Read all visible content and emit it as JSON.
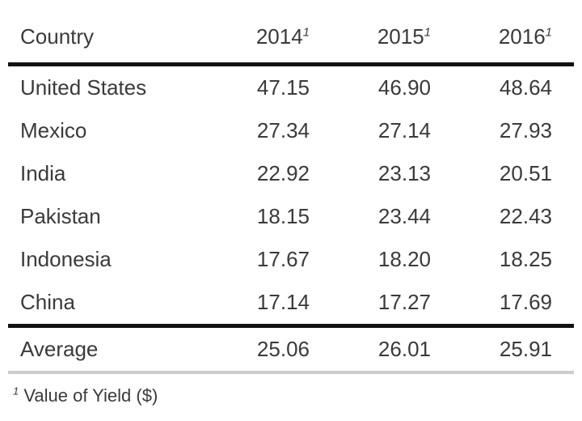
{
  "colors": {
    "background": "#ffffff",
    "text": "#3a3a3a",
    "heavy_rule": "#121212",
    "light_rule": "#cccccc"
  },
  "table": {
    "header": {
      "country": "Country",
      "years": [
        "2014",
        "2015",
        "2016"
      ]
    },
    "rows": [
      {
        "country": "United States",
        "v2014": "47.15",
        "v2015": "46.90",
        "v2016": "48.64"
      },
      {
        "country": "Mexico",
        "v2014": "27.34",
        "v2015": "27.14",
        "v2016": "27.93"
      },
      {
        "country": "India",
        "v2014": "22.92",
        "v2015": "23.13",
        "v2016": "20.51"
      },
      {
        "country": "Pakistan",
        "v2014": "18.15",
        "v2015": "23.44",
        "v2016": "22.43"
      },
      {
        "country": "Indonesia",
        "v2014": "17.67",
        "v2015": "18.20",
        "v2016": "18.25"
      },
      {
        "country": "China",
        "v2014": "17.14",
        "v2015": "17.27",
        "v2016": "17.69"
      }
    ],
    "average": {
      "label": "Average",
      "v2014": "25.06",
      "v2015": "26.01",
      "v2016": "25.91"
    }
  },
  "footnote": {
    "marker": "1",
    "text": "Value of Yield ($)"
  },
  "chart_data": {
    "type": "table",
    "title": "",
    "columns": [
      "Country",
      "2014",
      "2015",
      "2016"
    ],
    "column_note": "Years footnoted with marker 1 = Value of Yield ($)",
    "rows": [
      [
        "United States",
        47.15,
        46.9,
        48.64
      ],
      [
        "Mexico",
        27.34,
        27.14,
        27.93
      ],
      [
        "India",
        22.92,
        23.13,
        20.51
      ],
      [
        "Pakistan",
        18.15,
        23.44,
        22.43
      ],
      [
        "Indonesia",
        17.67,
        18.2,
        18.25
      ],
      [
        "China",
        17.14,
        17.27,
        17.69
      ]
    ],
    "footer_row": [
      "Average",
      25.06,
      26.01,
      25.91
    ],
    "footnote": "1 Value of Yield ($)"
  }
}
